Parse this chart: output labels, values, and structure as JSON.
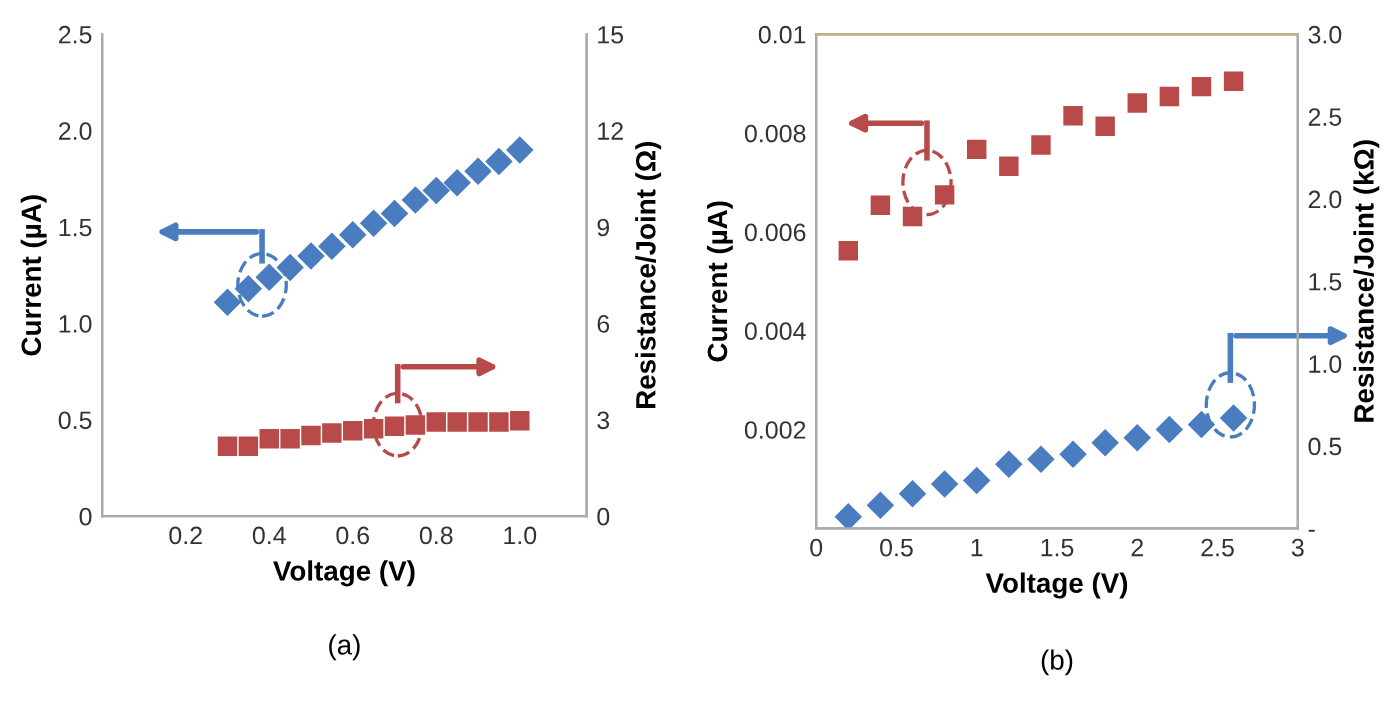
{
  "chart_data": [
    {
      "type": "scatter",
      "xlabel": "Voltage (V)",
      "ylabel": "Current (µA)",
      "y2label": "Resistance/Joint (Ω)",
      "annotations": [
        "(a)"
      ],
      "xlim": [
        0,
        1.16
      ],
      "xticks": [
        0.2,
        0.4,
        0.6,
        0.8,
        {
          "value": 1.0,
          "label": "1.0"
        }
      ],
      "ylim": [
        0,
        2.5
      ],
      "yticks": [
        0,
        0.5,
        {
          "value": 1.0,
          "label": "1.0"
        },
        1.5,
        {
          "value": 2.0,
          "label": "2.0"
        },
        2.5
      ],
      "y2lim": [
        0,
        15
      ],
      "y2ticks": [
        0,
        3,
        6,
        9,
        12,
        15
      ],
      "grid": false,
      "legend": false,
      "series": [
        {
          "color": "#4a7cc0",
          "marker": "diamond",
          "x": [
            0.3,
            0.35,
            0.4,
            0.45,
            0.5,
            0.55,
            0.6,
            0.65,
            0.7,
            0.75,
            0.8,
            0.85,
            0.9,
            0.95,
            1.0
          ],
          "values": [
            1.11,
            1.18,
            1.24,
            1.29,
            1.35,
            1.4,
            1.46,
            1.52,
            1.57,
            1.64,
            1.69,
            1.73,
            1.79,
            1.84,
            1.9
          ]
        },
        {
          "color": "#b84a4a",
          "marker": "square",
          "axis": "y2",
          "x": [
            0.3,
            0.35,
            0.4,
            0.45,
            0.5,
            0.55,
            0.6,
            0.65,
            0.7,
            0.75,
            0.8,
            0.85,
            0.9,
            0.95,
            1.0
          ],
          "values": [
            2.18,
            2.18,
            2.41,
            2.41,
            2.51,
            2.59,
            2.66,
            2.72,
            2.8,
            2.84,
            2.93,
            2.93,
            2.93,
            2.93,
            2.97
          ]
        }
      ]
    },
    {
      "type": "scatter",
      "xlabel": "Voltage (V)",
      "ylabel": "Current (µA)",
      "y2label": "Resistance/Joint (kΩ)",
      "annotations": [
        "(b)"
      ],
      "xlim": [
        0,
        3
      ],
      "xticks": [
        0,
        0.5,
        1,
        1.5,
        2,
        2.5,
        3
      ],
      "ylim": [
        0,
        0.01
      ],
      "yticks": [
        {
          "value": 0,
          "label": null
        },
        0.002,
        0.004,
        0.006,
        0.008,
        0.01
      ],
      "y2lim": [
        0,
        3
      ],
      "y2ticks": [
        {
          "value": 0,
          "label": "-"
        },
        0.5,
        {
          "value": 1.0,
          "label": "1.0"
        },
        1.5,
        {
          "value": 2.0,
          "label": "2.0"
        },
        2.5,
        {
          "value": 3.0,
          "label": "3.0"
        }
      ],
      "grid": false,
      "legend": false,
      "series": [
        {
          "color": "#b84a4a",
          "marker": "square",
          "x": [
            0.2,
            0.4,
            0.6,
            0.8,
            1.0,
            1.2,
            1.4,
            1.6,
            1.8,
            2.0,
            2.2,
            2.4,
            2.6
          ],
          "values": [
            0.00562,
            0.00654,
            0.00631,
            0.00675,
            0.00767,
            0.00733,
            0.00776,
            0.00835,
            0.00814,
            0.00861,
            0.00874,
            0.00894,
            0.00905
          ]
        },
        {
          "color": "#4a7cc0",
          "marker": "diamond",
          "axis": "y2",
          "x": [
            0.2,
            0.4,
            0.6,
            0.8,
            1.0,
            1.2,
            1.4,
            1.6,
            1.8,
            2.0,
            2.2,
            2.4,
            2.6
          ],
          "values": [
            0.07,
            0.14,
            0.21,
            0.27,
            0.29,
            0.39,
            0.42,
            0.45,
            0.52,
            0.55,
            0.6,
            0.63,
            0.67
          ]
        }
      ]
    }
  ]
}
